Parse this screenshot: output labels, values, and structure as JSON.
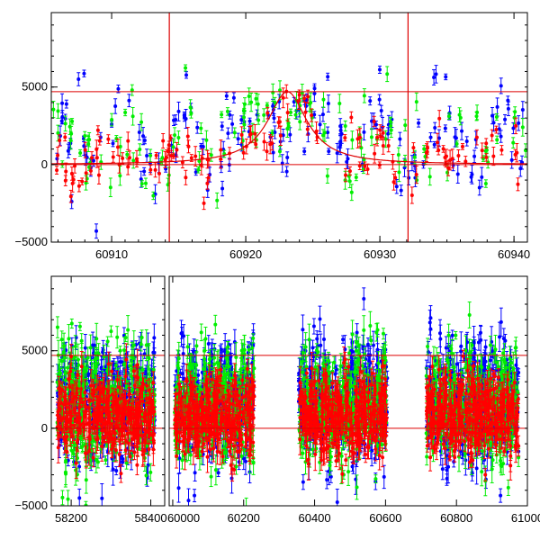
{
  "colors": {
    "red": "#ff0000",
    "green": "#00ee00",
    "blue": "#0000ff",
    "axis": "#000000",
    "model": "#dd0000"
  },
  "chart_data": [
    {
      "type": "scatter",
      "title": "",
      "xlabel": "",
      "ylabel": "",
      "xlim": [
        60905.5,
        60941
      ],
      "ylim": [
        -5000,
        9800
      ],
      "xticks": [
        60910,
        60920,
        60930,
        60940
      ],
      "xtick_labels": [
        "60910",
        "60920",
        "60930",
        "60940"
      ],
      "yticks": [
        -5000,
        0,
        5000
      ],
      "ytick_labels": [
        "−5000",
        "0",
        "5000"
      ],
      "hlines": [
        0,
        4700
      ],
      "vlines": [
        60914.3,
        60932.1
      ],
      "model_curve": {
        "shape": "peak",
        "t0": 60923.1,
        "peak": 4700,
        "tE": 1.8
      },
      "series": [
        {
          "name": "blue",
          "color": "blue",
          "center": 1500,
          "spread": 2600,
          "seed": 11,
          "count": 170
        },
        {
          "name": "green",
          "color": "green",
          "center": 1300,
          "spread": 2500,
          "seed": 23,
          "count": 140
        },
        {
          "name": "red",
          "color": "red",
          "center": 400,
          "spread": 1600,
          "seed": 37,
          "count": 140
        }
      ]
    },
    {
      "type": "scatter",
      "title": "",
      "xlabel": "",
      "ylabel": "",
      "segments": [
        {
          "xlim": [
            58150,
            58435
          ],
          "xticks": [
            58200,
            58400
          ],
          "xtick_labels": [
            "58200",
            "58400"
          ],
          "data_range": [
            58165,
            58410
          ]
        },
        {
          "xlim": [
            59990,
            61000
          ],
          "xticks": [
            60000,
            60200,
            60400,
            60600,
            60800,
            61000
          ],
          "xtick_labels": [
            "60000",
            "60200",
            "60400",
            "60600",
            "60800",
            "61000"
          ],
          "data_ranges": [
            [
              60005,
              60230
            ],
            [
              60355,
              60605
            ],
            [
              60715,
              60975
            ]
          ]
        }
      ],
      "ylim": [
        -5000,
        9800
      ],
      "yticks": [
        -5000,
        0,
        5000
      ],
      "ytick_labels": [
        "−5000",
        "0",
        "5000"
      ],
      "hlines": [
        0,
        4700
      ],
      "series": [
        {
          "name": "blue",
          "color": "blue",
          "center": 1800,
          "spread": 3600,
          "seed": 51
        },
        {
          "name": "green",
          "color": "green",
          "center": 1500,
          "spread": 3400,
          "seed": 67
        },
        {
          "name": "red",
          "color": "red",
          "center": 800,
          "spread": 2300,
          "seed": 83
        }
      ]
    }
  ]
}
